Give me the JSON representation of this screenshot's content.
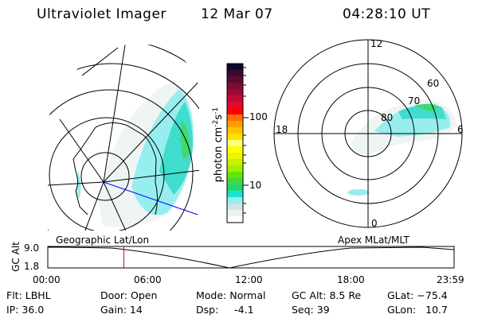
{
  "header": {
    "title": "Ultraviolet Imager",
    "date": "12 Mar 07",
    "time": "04:28:10 UT"
  },
  "colorbar": {
    "label": "photon cm",
    "label_sup1": "-2",
    "label_s": "s",
    "label_sup2": "-1",
    "ticks": [
      "100",
      "10"
    ],
    "colors": [
      "#0a0a30",
      "#3a0a2a",
      "#5a0a30",
      "#800a30",
      "#a00a35",
      "#c00a35",
      "#e00a30",
      "#ff0000",
      "#ff7000",
      "#ffa000",
      "#ffc000",
      "#ffe000",
      "#ffff80",
      "#ffff00",
      "#e8f800",
      "#c8f000",
      "#a0f000",
      "#60e800",
      "#40d840",
      "#20d870",
      "#20e0d0",
      "#90f0f0",
      "#d0e4e4",
      "#e8f4ee",
      "#ffffff"
    ]
  },
  "left_map": {
    "label": "Geographic Lat/Lon"
  },
  "right_map": {
    "label": "Apex MLat/MLT",
    "mlt_labels": [
      "12",
      "18",
      "6",
      "0"
    ],
    "lat_labels": [
      "60",
      "70",
      "80"
    ]
  },
  "timeline": {
    "ylabel": "GC Alt",
    "y_ticks": [
      "9.0",
      "1.8"
    ],
    "x_ticks": [
      "00:00",
      "06:00",
      "12:00",
      "18:00",
      "23:59"
    ],
    "current_time_fraction": 0.187
  },
  "info": {
    "filter": "Flt: LBHL",
    "ip": "IP: 36.0",
    "door": "Door: Open",
    "gain": "Gain: 14",
    "mode": "Mode: Normal",
    "dsp": "Dsp:     -4.1",
    "gc_alt": "GC Alt: 8.5 Re",
    "seq": "Seq: 39",
    "glat": "GLat: −75.4",
    "glon": "GLon:   10.7"
  }
}
